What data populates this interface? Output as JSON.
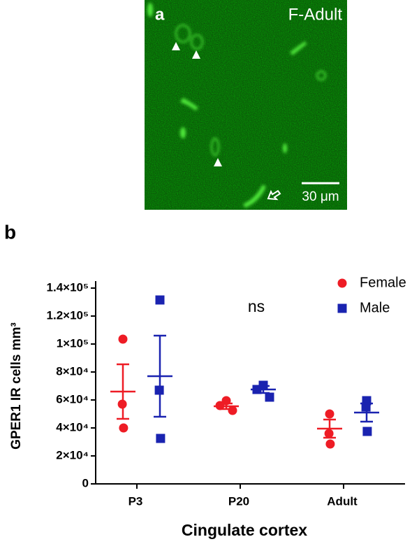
{
  "panel_a": {
    "label": "a",
    "title": "F-Adult",
    "scale_bar": "30 μm"
  },
  "panel_b_label": "b",
  "chart_data": {
    "type": "dot_plot",
    "y_label": "GPER1 IR cells mm³",
    "x_label": "Cingulate cortex",
    "annotation": "ns",
    "categories": [
      "P3",
      "P20",
      "Adult"
    ],
    "series": [
      {
        "name": "Female",
        "color": "#ee1c25",
        "marker": "circle",
        "values": [
          [
            103500,
            57000,
            40000
          ],
          [
            59500,
            56000,
            52500
          ],
          [
            50000,
            36000,
            28500
          ]
        ],
        "mean": [
          66000,
          55500,
          39500
        ],
        "sem": [
          19500,
          2000,
          6500
        ]
      },
      {
        "name": "Male",
        "color": "#1a23b0",
        "marker": "square",
        "values": [
          [
            131500,
            67000,
            32500
          ],
          [
            70500,
            67500,
            62000
          ],
          [
            59500,
            55000,
            37500
          ]
        ],
        "mean": [
          77000,
          67500,
          51000
        ],
        "sem": [
          29000,
          2500,
          6500
        ]
      }
    ],
    "ylim": [
      0,
      145000
    ],
    "yticks": [
      0,
      {
        "value": 20000,
        "label": "2×10⁴"
      },
      {
        "value": 40000,
        "label": "4×10⁴"
      },
      {
        "value": 60000,
        "label": "6×10⁴"
      },
      {
        "value": 80000,
        "label": "8×10⁴"
      },
      {
        "value": 100000,
        "label": "1×10⁵"
      },
      {
        "value": 120000,
        "label": "1.2×10⁵"
      },
      {
        "value": 140000,
        "label": "1.4×10⁵"
      }
    ],
    "legend": "top-right"
  }
}
